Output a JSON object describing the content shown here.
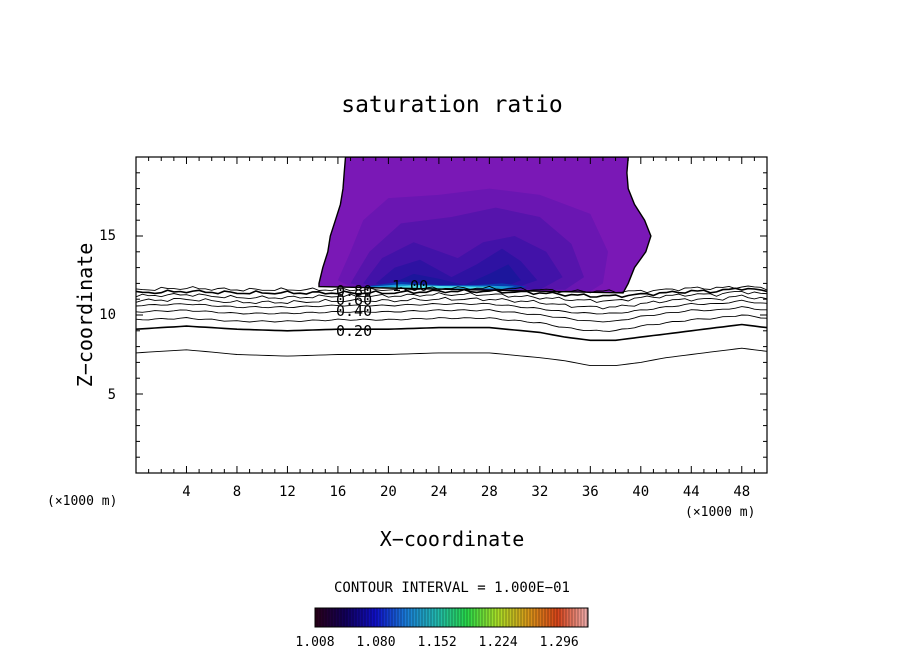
{
  "chart_data": {
    "type": "contour",
    "title": "saturation ratio",
    "xlabel": "X−coordinate",
    "ylabel": "Z−coordinate",
    "x_unit_left": "(×1000 m)",
    "x_unit_right": "(×1000 m)",
    "xlim": [
      0,
      50
    ],
    "ylim": [
      0,
      20
    ],
    "x_ticks": [
      "4",
      "8",
      "12",
      "16",
      "20",
      "24",
      "28",
      "32",
      "36",
      "40",
      "44",
      "48"
    ],
    "y_ticks": [
      "5",
      "10",
      "15"
    ],
    "contour_interval_text": "CONTOUR INTERVAL = 1.000E−01",
    "contour_line_labels": [
      "0.20",
      "0.40",
      "0.60",
      "0.80",
      "1.00"
    ],
    "colorbar": {
      "min": 1.008,
      "max": 1.33,
      "tick_labels": [
        "1.008",
        "1.080",
        "1.152",
        "1.224",
        "1.296"
      ]
    },
    "contours": [
      {
        "level": 0.1,
        "z": [
          [
            0,
            7.6
          ],
          [
            4,
            7.8
          ],
          [
            8,
            7.5
          ],
          [
            12,
            7.4
          ],
          [
            16,
            7.5
          ],
          [
            20,
            7.5
          ],
          [
            24,
            7.6
          ],
          [
            28,
            7.6
          ],
          [
            32,
            7.3
          ],
          [
            34,
            7.1
          ],
          [
            36,
            6.8
          ],
          [
            38,
            6.8
          ],
          [
            40,
            7.0
          ],
          [
            42,
            7.3
          ],
          [
            44,
            7.5
          ],
          [
            46,
            7.7
          ],
          [
            48,
            7.9
          ],
          [
            50,
            7.7
          ]
        ]
      },
      {
        "level": 0.2,
        "z": [
          [
            0,
            9.1
          ],
          [
            4,
            9.3
          ],
          [
            8,
            9.1
          ],
          [
            12,
            9.0
          ],
          [
            16,
            9.1
          ],
          [
            20,
            9.1
          ],
          [
            24,
            9.2
          ],
          [
            28,
            9.2
          ],
          [
            32,
            8.9
          ],
          [
            34,
            8.6
          ],
          [
            36,
            8.4
          ],
          [
            38,
            8.4
          ],
          [
            40,
            8.6
          ],
          [
            42,
            8.8
          ],
          [
            44,
            9.0
          ],
          [
            46,
            9.2
          ],
          [
            48,
            9.4
          ],
          [
            50,
            9.2
          ]
        ]
      },
      {
        "level": 0.3,
        "z": [
          [
            0,
            9.7
          ],
          [
            4,
            9.8
          ],
          [
            8,
            9.6
          ],
          [
            12,
            9.6
          ],
          [
            16,
            9.7
          ],
          [
            20,
            9.7
          ],
          [
            24,
            9.8
          ],
          [
            28,
            9.8
          ],
          [
            32,
            9.5
          ],
          [
            34,
            9.2
          ],
          [
            36,
            9.0
          ],
          [
            38,
            9.0
          ],
          [
            40,
            9.3
          ],
          [
            42,
            9.5
          ],
          [
            44,
            9.7
          ],
          [
            46,
            9.8
          ],
          [
            48,
            10.0
          ],
          [
            50,
            9.8
          ]
        ]
      },
      {
        "level": 0.4,
        "z": [
          [
            0,
            10.2
          ],
          [
            4,
            10.3
          ],
          [
            8,
            10.1
          ],
          [
            12,
            10.1
          ],
          [
            16,
            10.2
          ],
          [
            20,
            10.2
          ],
          [
            24,
            10.3
          ],
          [
            28,
            10.3
          ],
          [
            32,
            10.0
          ],
          [
            34,
            9.8
          ],
          [
            36,
            9.6
          ],
          [
            38,
            9.6
          ],
          [
            40,
            9.9
          ],
          [
            42,
            10.1
          ],
          [
            44,
            10.3
          ],
          [
            46,
            10.3
          ],
          [
            48,
            10.5
          ],
          [
            50,
            10.3
          ]
        ]
      },
      {
        "level": 0.5,
        "z": [
          [
            0,
            10.6
          ],
          [
            4,
            10.7
          ],
          [
            8,
            10.5
          ],
          [
            12,
            10.5
          ],
          [
            16,
            10.6
          ],
          [
            20,
            10.6
          ],
          [
            24,
            10.7
          ],
          [
            28,
            10.7
          ],
          [
            32,
            10.4
          ],
          [
            34,
            10.2
          ],
          [
            36,
            10.1
          ],
          [
            38,
            10.1
          ],
          [
            40,
            10.3
          ],
          [
            42,
            10.5
          ],
          [
            44,
            10.7
          ],
          [
            46,
            10.7
          ],
          [
            48,
            10.9
          ],
          [
            50,
            10.7
          ]
        ]
      },
      {
        "level": 0.6,
        "z": [
          [
            0,
            10.9
          ],
          [
            4,
            11.0
          ],
          [
            8,
            10.8
          ],
          [
            12,
            10.8
          ],
          [
            16,
            10.9
          ],
          [
            20,
            10.9
          ],
          [
            24,
            11.0
          ],
          [
            28,
            11.0
          ],
          [
            32,
            10.8
          ],
          [
            34,
            10.6
          ],
          [
            36,
            10.5
          ],
          [
            38,
            10.5
          ],
          [
            40,
            10.7
          ],
          [
            42,
            10.9
          ],
          [
            44,
            11.0
          ],
          [
            46,
            11.0
          ],
          [
            48,
            11.2
          ],
          [
            50,
            11.0
          ]
        ]
      },
      {
        "level": 0.7,
        "z": [
          [
            0,
            11.2
          ],
          [
            4,
            11.3
          ],
          [
            8,
            11.1
          ],
          [
            12,
            11.1
          ],
          [
            16,
            11.2
          ],
          [
            20,
            11.2
          ],
          [
            24,
            11.3
          ],
          [
            28,
            11.3
          ],
          [
            32,
            11.1
          ],
          [
            34,
            11.0
          ],
          [
            36,
            10.9
          ],
          [
            38,
            10.9
          ],
          [
            40,
            11.1
          ],
          [
            42,
            11.2
          ],
          [
            44,
            11.3
          ],
          [
            46,
            11.3
          ],
          [
            48,
            11.5
          ],
          [
            50,
            11.3
          ]
        ]
      },
      {
        "level": 0.8,
        "z": [
          [
            0,
            11.4
          ],
          [
            4,
            11.5
          ],
          [
            8,
            11.4
          ],
          [
            12,
            11.4
          ],
          [
            16,
            11.4
          ],
          [
            20,
            11.4
          ],
          [
            24,
            11.5
          ],
          [
            28,
            11.5
          ],
          [
            32,
            11.4
          ],
          [
            34,
            11.3
          ],
          [
            36,
            11.2
          ],
          [
            38,
            11.2
          ],
          [
            40,
            11.3
          ],
          [
            42,
            11.4
          ],
          [
            44,
            11.5
          ],
          [
            46,
            11.5
          ],
          [
            48,
            11.7
          ],
          [
            50,
            11.5
          ]
        ]
      },
      {
        "level": 0.9,
        "z": [
          [
            0,
            11.6
          ],
          [
            4,
            11.7
          ],
          [
            8,
            11.6
          ],
          [
            12,
            11.6
          ],
          [
            16,
            11.6
          ],
          [
            20,
            11.6
          ],
          [
            24,
            11.7
          ],
          [
            28,
            11.7
          ],
          [
            32,
            11.6
          ],
          [
            34,
            11.5
          ],
          [
            36,
            11.5
          ],
          [
            38,
            11.5
          ],
          [
            40,
            11.5
          ],
          [
            42,
            11.6
          ],
          [
            44,
            11.7
          ],
          [
            46,
            11.7
          ],
          [
            48,
            11.8
          ],
          [
            50,
            11.7
          ]
        ]
      }
    ],
    "supersaturated_region": {
      "boundary_xz": [
        [
          14.5,
          12.0
        ],
        [
          14.8,
          13.0
        ],
        [
          15.2,
          14.0
        ],
        [
          15.4,
          15.0
        ],
        [
          15.8,
          16.0
        ],
        [
          16.2,
          17.0
        ],
        [
          16.4,
          18.0
        ],
        [
          16.5,
          19.0
        ],
        [
          16.6,
          20.0
        ],
        [
          39.0,
          20.0
        ],
        [
          38.9,
          19.0
        ],
        [
          39.0,
          18.0
        ],
        [
          39.5,
          17.0
        ],
        [
          40.3,
          16.0
        ],
        [
          40.8,
          15.0
        ],
        [
          40.4,
          14.0
        ],
        [
          39.5,
          13.0
        ],
        [
          39.0,
          12.0
        ],
        [
          38.6,
          11.4
        ],
        [
          14.5,
          11.8
        ]
      ],
      "shading_levels": [
        {
          "value": 1.02,
          "color": "#7a18b6",
          "poly": [
            [
              14.5,
              12.0
            ],
            [
              14.8,
              13.0
            ],
            [
              15.2,
              14.0
            ],
            [
              15.4,
              15.0
            ],
            [
              15.8,
              16.0
            ],
            [
              16.2,
              17.0
            ],
            [
              16.4,
              18.0
            ],
            [
              16.5,
              19.0
            ],
            [
              16.6,
              20.0
            ],
            [
              39.0,
              20.0
            ],
            [
              38.9,
              19.0
            ],
            [
              39.0,
              18.0
            ],
            [
              39.5,
              17.0
            ],
            [
              40.3,
              16.0
            ],
            [
              40.8,
              15.0
            ],
            [
              40.4,
              14.0
            ],
            [
              39.5,
              13.0
            ],
            [
              39.0,
              12.0
            ],
            [
              38.6,
              11.4
            ],
            [
              14.5,
              11.8
            ]
          ]
        },
        {
          "value": 1.05,
          "color": "#6a16b2",
          "poly": [
            [
              16.0,
              12.2
            ],
            [
              17.0,
              14.0
            ],
            [
              18.0,
              16.0
            ],
            [
              20.0,
              17.4
            ],
            [
              24.0,
              17.6
            ],
            [
              28.0,
              18.0
            ],
            [
              32.0,
              17.6
            ],
            [
              36.0,
              16.4
            ],
            [
              37.4,
              14.0
            ],
            [
              37.0,
              12.0
            ],
            [
              36.0,
              11.5
            ],
            [
              17.0,
              11.8
            ]
          ]
        },
        {
          "value": 1.08,
          "color": "#5614ac",
          "poly": [
            [
              17.0,
              12.0
            ],
            [
              18.5,
              14.0
            ],
            [
              21.0,
              15.8
            ],
            [
              25.0,
              16.2
            ],
            [
              28.5,
              16.8
            ],
            [
              32.0,
              16.2
            ],
            [
              34.5,
              14.5
            ],
            [
              35.5,
              12.4
            ],
            [
              34.0,
              11.6
            ],
            [
              18.0,
              11.8
            ]
          ]
        },
        {
          "value": 1.11,
          "color": "#4212a8",
          "poly": [
            [
              18.0,
              12.0
            ],
            [
              19.5,
              13.6
            ],
            [
              22.0,
              14.6
            ],
            [
              25.5,
              13.6
            ],
            [
              27.5,
              14.6
            ],
            [
              30.0,
              15.0
            ],
            [
              32.5,
              14.0
            ],
            [
              33.8,
              12.4
            ],
            [
              32.0,
              11.6
            ],
            [
              19.0,
              11.8
            ]
          ]
        },
        {
          "value": 1.14,
          "color": "#2e12a2",
          "poly": [
            [
              19.0,
              12.0
            ],
            [
              20.5,
              13.0
            ],
            [
              22.5,
              13.5
            ],
            [
              25.0,
              12.4
            ],
            [
              27.0,
              13.2
            ],
            [
              29.0,
              14.2
            ],
            [
              30.5,
              13.4
            ],
            [
              31.8,
              12.2
            ],
            [
              30.0,
              11.7
            ],
            [
              20.0,
              11.8
            ]
          ]
        },
        {
          "value": 1.17,
          "color": "#1c169c",
          "poly": [
            [
              20.0,
              11.9
            ],
            [
              22.0,
              12.6
            ],
            [
              24.0,
              12.3
            ],
            [
              26.0,
              11.9
            ],
            [
              28.0,
              12.6
            ],
            [
              29.5,
              13.2
            ],
            [
              30.5,
              12.2
            ],
            [
              29.0,
              11.7
            ],
            [
              21.0,
              11.8
            ]
          ]
        },
        {
          "value": 1.2,
          "color": "#0a3cb0",
          "poly": [
            [
              18.0,
              11.8
            ],
            [
              21.0,
              12.1
            ],
            [
              24.0,
              11.9
            ],
            [
              27.0,
              11.9
            ],
            [
              29.0,
              12.0
            ],
            [
              31.0,
              11.8
            ],
            [
              30.0,
              11.6
            ],
            [
              19.0,
              11.7
            ]
          ]
        },
        {
          "value": 1.24,
          "color": "#1a9ed8",
          "poly": [
            [
              18.0,
              11.75
            ],
            [
              21.0,
              11.95
            ],
            [
              24.0,
              11.85
            ],
            [
              28.0,
              11.85
            ],
            [
              30.0,
              11.8
            ],
            [
              29.0,
              11.65
            ],
            [
              19.0,
              11.7
            ]
          ]
        },
        {
          "value": 1.28,
          "color": "#4de0ea",
          "poly": [
            [
              19.5,
              11.72
            ],
            [
              22.0,
              11.88
            ],
            [
              26.0,
              11.8
            ],
            [
              28.5,
              11.75
            ],
            [
              27.0,
              11.68
            ],
            [
              21.0,
              11.7
            ]
          ]
        }
      ]
    }
  },
  "colors": {
    "background": "#ffffff",
    "axis": "#000000",
    "colorbar_stops": [
      "#2a0018",
      "#12005a",
      "#1010c8",
      "#1a7cd8",
      "#22b8b0",
      "#28d84a",
      "#a8e028",
      "#d89a1a",
      "#d8441a",
      "#f0b0b0"
    ]
  }
}
